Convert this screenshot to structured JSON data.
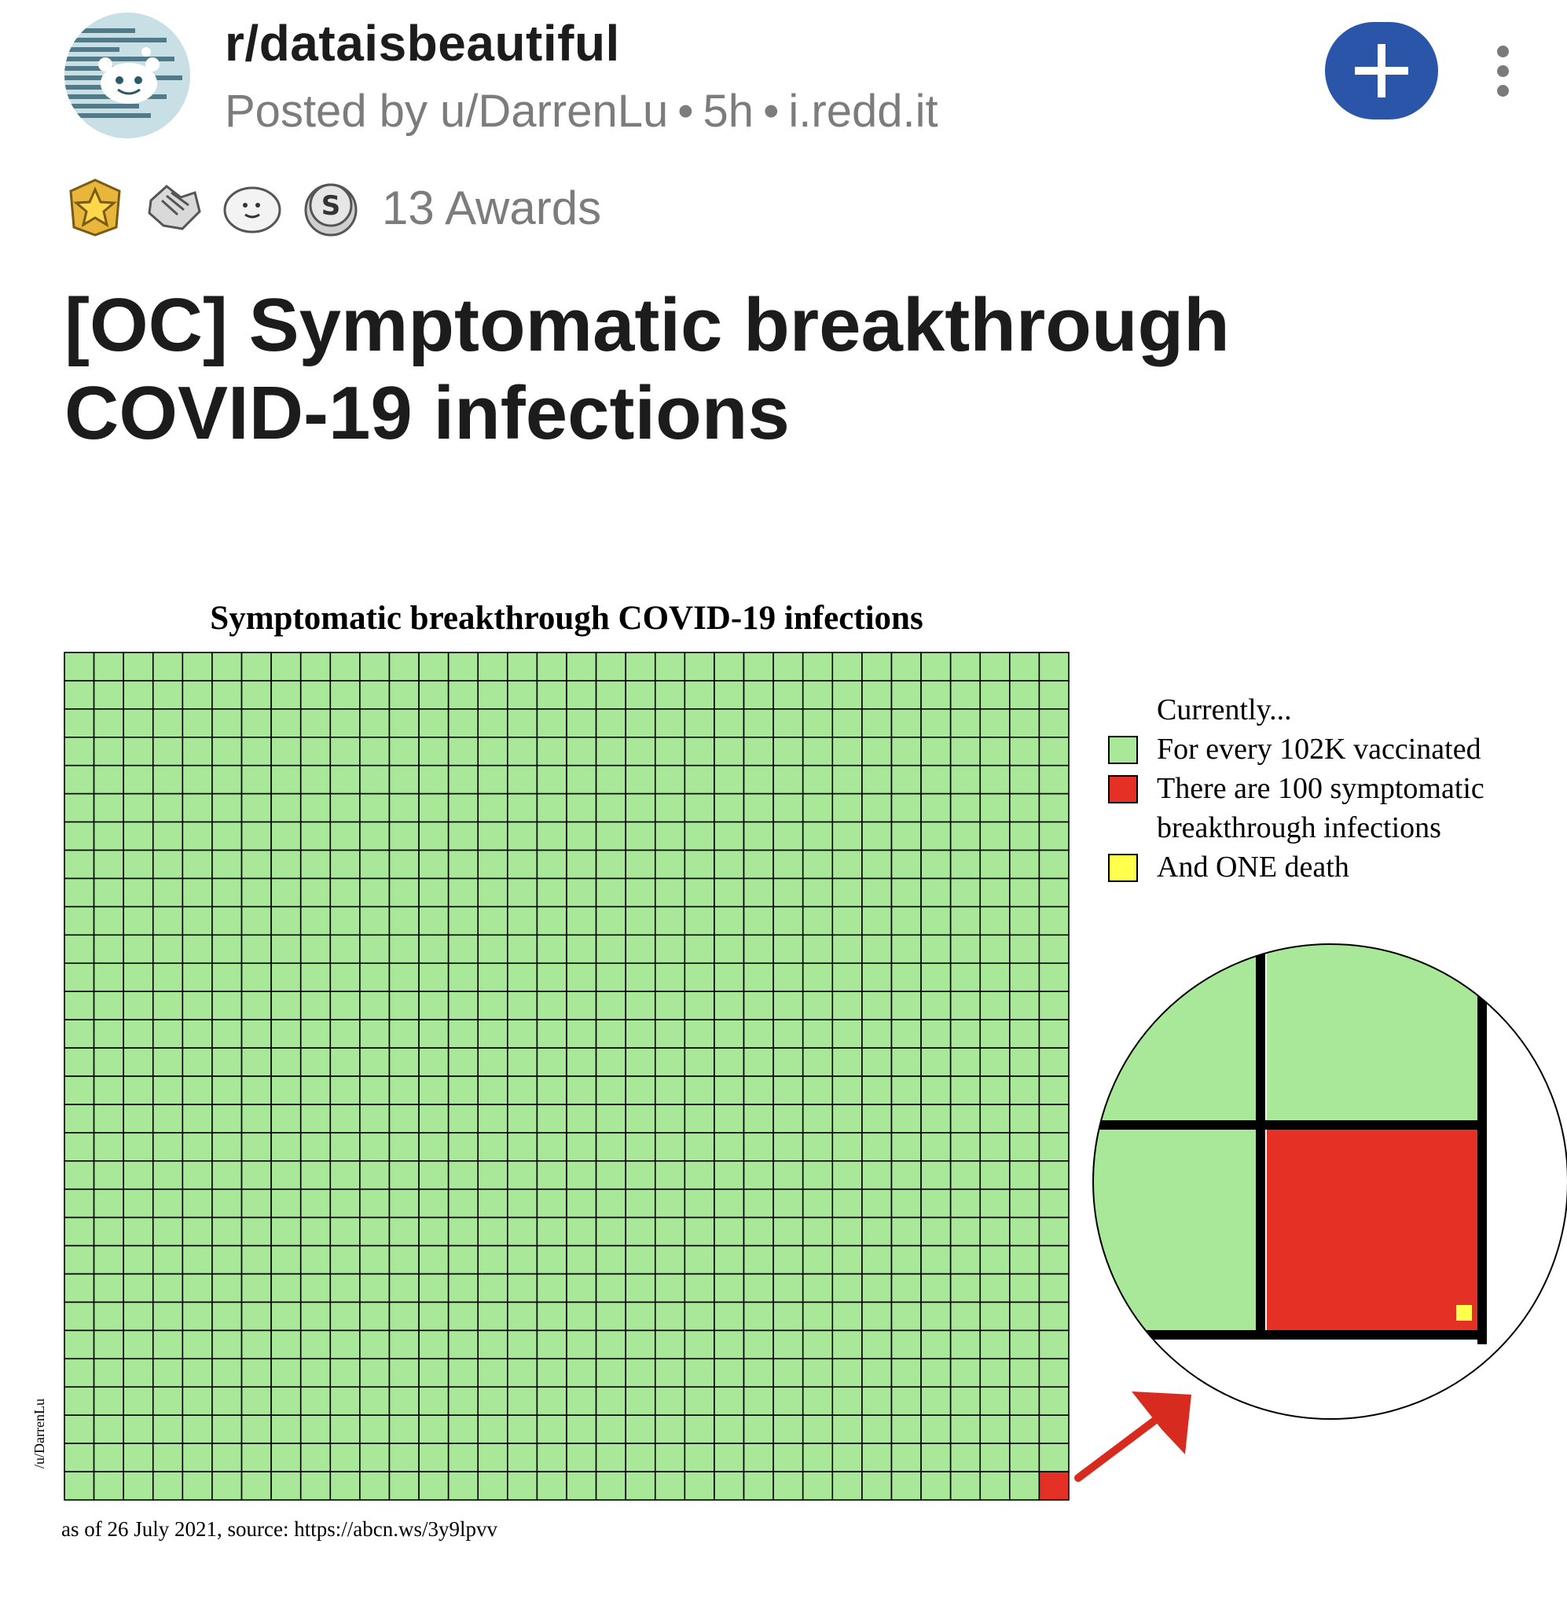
{
  "post": {
    "subreddit": "r/dataisbeautiful",
    "posted_by": "Posted by u/DarrenLu",
    "age": "5h",
    "domain": "i.redd.it",
    "awards": [
      "superstar-award-icon",
      "handshake-award-icon",
      "seal-award-icon",
      "silver-coin-award-icon"
    ],
    "awards_label": "13 Awards",
    "title": "[OC] Symptomatic breakthrough COVID-19 infections"
  },
  "colors": {
    "join_button": "#2a55a9",
    "vaccinated": "#a8e898",
    "infection": "#e53125",
    "death": "#ffff4d"
  },
  "chart_data": {
    "type": "waffle",
    "title": "Symptomatic breakthrough COVID-19 infections",
    "grid": {
      "columns": 34,
      "rows": 30
    },
    "counts": {
      "vaccinated": 102000,
      "symptomatic_infections": 100,
      "deaths": 1
    },
    "legend": {
      "heading": "Currently...",
      "items": [
        {
          "label": "For every 102K vaccinated",
          "color": "#a8e898"
        },
        {
          "label": "There are 100 symptomatic breakthrough infections",
          "color": "#e53125"
        },
        {
          "label": "And ONE death",
          "color": "#ffff4d"
        }
      ]
    },
    "footnote": "as of 26 July 2021, source: https://abcn.ws/3y9lpvv",
    "credit": "/u/DarrenLu"
  }
}
